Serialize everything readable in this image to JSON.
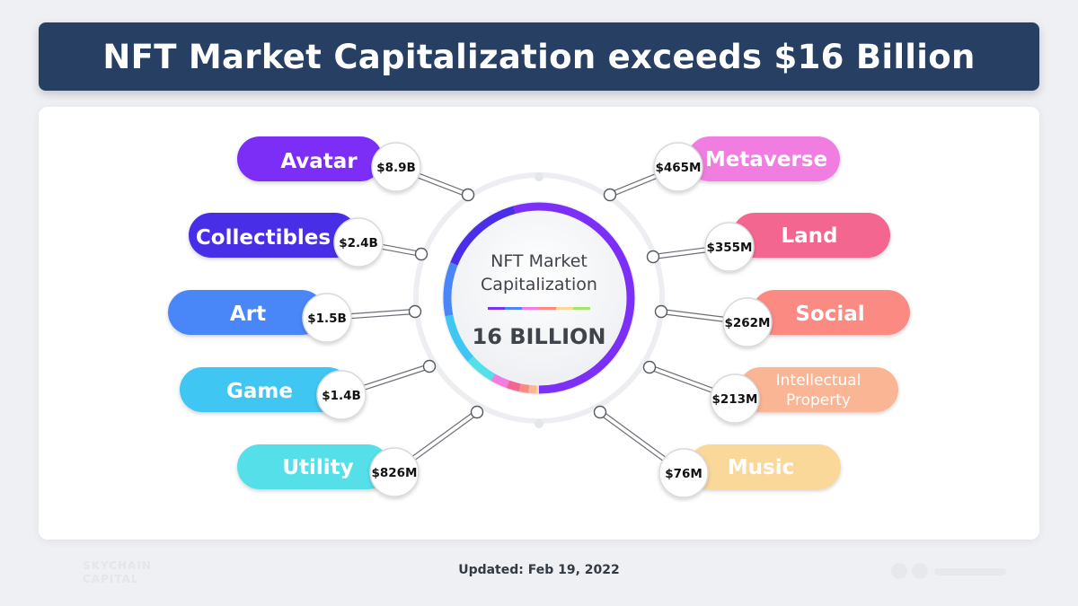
{
  "title": "NFT Market Capitalization exceeds $16 Billion",
  "footer": {
    "updated": "Updated: Feb 19, 2022"
  },
  "colors": {
    "title_bg": "#263f63",
    "categories": {
      "Avatar": "#7b2ff7",
      "Collectibles": "#4a2ee8",
      "Art": "#4a86f7",
      "Game": "#3fc6f3",
      "Utility": "#54e0e9",
      "Metaverse": "#f07ddf",
      "Land": "#f36690",
      "Social": "#fa8a82",
      "Intellectual Property": "#fab595",
      "Music": "#fad89a"
    }
  },
  "chart_data": {
    "type": "pie",
    "variant": "donut",
    "center_label": "NFT Market Capitalization",
    "center_value": "16 BILLION",
    "unit": "USD",
    "slices": [
      {
        "label": "Avatar",
        "value": 8900000000,
        "value_label": "$8.9B"
      },
      {
        "label": "Collectibles",
        "value": 2400000000,
        "value_label": "$2.4B"
      },
      {
        "label": "Art",
        "value": 1500000000,
        "value_label": "$1.5B"
      },
      {
        "label": "Game",
        "value": 1400000000,
        "value_label": "$1.4B"
      },
      {
        "label": "Utility",
        "value": 826000000,
        "value_label": "$826M"
      },
      {
        "label": "Metaverse",
        "value": 465000000,
        "value_label": "$465M"
      },
      {
        "label": "Land",
        "value": 355000000,
        "value_label": "$355M"
      },
      {
        "label": "Social",
        "value": 262000000,
        "value_label": "$262M"
      },
      {
        "label": "Intellectual Property",
        "value": 213000000,
        "value_label": "$213M"
      },
      {
        "label": "Music",
        "value": 76000000,
        "value_label": "$76M"
      }
    ]
  },
  "watermarks": {
    "left_logo": [
      "SKYCHAIN",
      "CAPITAL"
    ]
  }
}
